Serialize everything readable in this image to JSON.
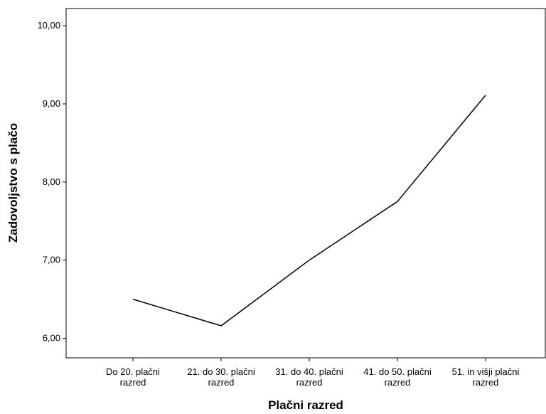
{
  "chart_data": {
    "type": "line",
    "title": "",
    "xlabel": "Plačni razred",
    "ylabel": "Zadovoljstvo s plačo",
    "categories": [
      [
        "Do 20. plačni",
        "razred"
      ],
      [
        "21. do 30. plačni",
        "razred"
      ],
      [
        "31. do 40. plačni",
        "razred"
      ],
      [
        "41. do 50. plačni",
        "razred"
      ],
      [
        "51. in višji plačni",
        "razred"
      ]
    ],
    "values": [
      6.5,
      6.16,
      7.0,
      7.75,
      9.11
    ],
    "ylim": [
      5.75,
      10.22
    ],
    "yticks": [
      6,
      7,
      8,
      9,
      10
    ],
    "ytick_labels": [
      "6,00",
      "7,00",
      "8,00",
      "9,00",
      "10,00"
    ],
    "grid": false,
    "colors": {
      "line": "#000000",
      "frame": "#000000",
      "background": "#ffffff"
    }
  }
}
